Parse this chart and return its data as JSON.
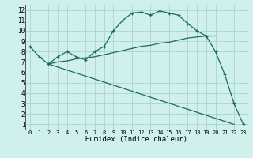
{
  "xlabel": "Humidex (Indice chaleur)",
  "bg_color": "#cff0ec",
  "grid_color": "#aad4cc",
  "line_color": "#1a6b5a",
  "xlim": [
    -0.5,
    23.5
  ],
  "ylim": [
    0.5,
    12.5
  ],
  "xticks": [
    0,
    1,
    2,
    3,
    4,
    5,
    6,
    7,
    8,
    9,
    10,
    11,
    12,
    13,
    14,
    15,
    16,
    17,
    18,
    19,
    20,
    21,
    22,
    23
  ],
  "yticks": [
    1,
    2,
    3,
    4,
    5,
    6,
    7,
    8,
    9,
    10,
    11,
    12
  ],
  "line1_x": [
    0,
    1,
    2,
    3,
    4,
    5,
    6,
    7,
    8,
    9,
    10,
    11,
    12,
    13,
    14,
    15,
    16,
    17,
    18,
    19,
    20,
    21,
    22,
    23
  ],
  "line1_y": [
    8.5,
    7.5,
    6.8,
    7.5,
    8.0,
    7.5,
    7.2,
    8.0,
    8.5,
    10.0,
    11.0,
    11.7,
    11.8,
    11.5,
    11.9,
    11.7,
    11.5,
    10.7,
    10.0,
    9.5,
    8.0,
    5.8,
    3.0,
    1.0
  ],
  "line2_x": [
    2,
    3,
    4,
    5,
    6,
    7,
    8,
    9,
    10,
    11,
    12,
    13,
    14,
    15,
    16,
    17,
    18,
    19,
    20
  ],
  "line2_y": [
    6.8,
    7.0,
    7.1,
    7.3,
    7.4,
    7.5,
    7.7,
    7.9,
    8.1,
    8.3,
    8.5,
    8.6,
    8.8,
    8.9,
    9.1,
    9.3,
    9.4,
    9.5,
    9.5
  ],
  "line3_x": [
    2,
    22
  ],
  "line3_y": [
    6.8,
    1.0
  ]
}
